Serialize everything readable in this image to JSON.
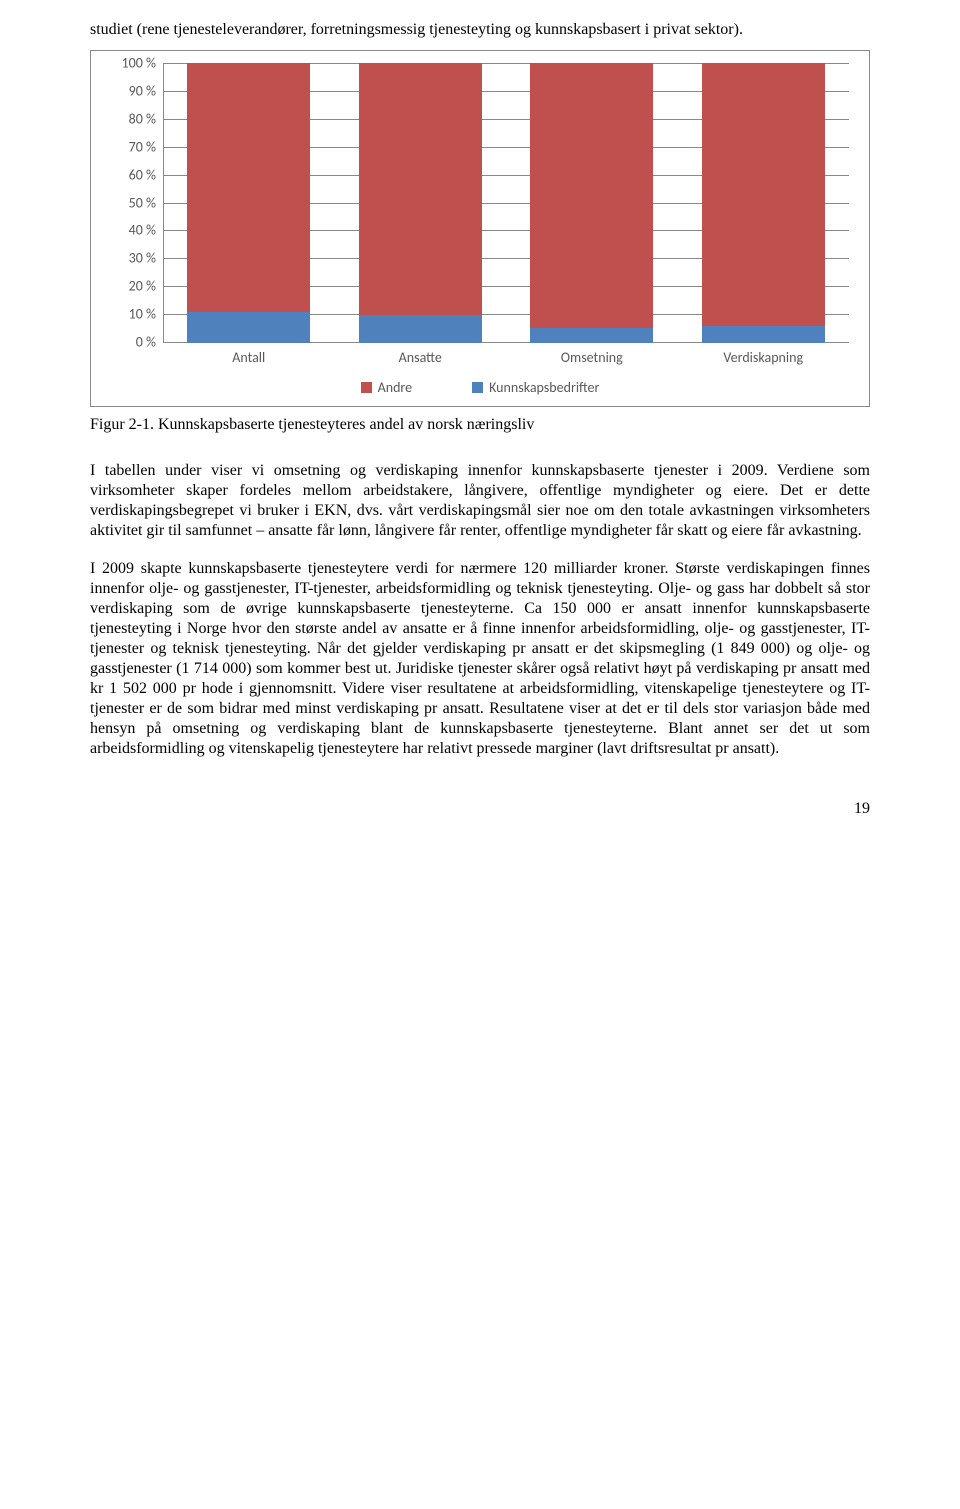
{
  "intro": "studiet (rene tjenesteleverandører, forretningsmessig tjenesteyting og kunnskapsbasert i privat sektor).",
  "chart": {
    "type": "stacked-bar-100",
    "yticks": [
      "100 %",
      "90 %",
      "80 %",
      "70 %",
      "60 %",
      "50 %",
      "40 %",
      "30 %",
      "20 %",
      "10 %",
      "0 %"
    ],
    "ylim": [
      0,
      100
    ],
    "gridline_color": "#888888",
    "background_color": "#ffffff",
    "label_color": "#595959",
    "label_fontsize": 14,
    "categories": [
      "Antall",
      "Ansatte",
      "Omsetning",
      "Verdiskapning"
    ],
    "series": [
      {
        "name": "Andre",
        "color": "#c0504d"
      },
      {
        "name": "Kunnskapsbedrifter",
        "color": "#4f81bd"
      }
    ],
    "values": {
      "andre": [
        89,
        90,
        94.5,
        94
      ],
      "kunnskap": [
        11,
        10,
        5.5,
        6
      ]
    },
    "bar_width_pct": 18
  },
  "figure_caption": "Figur 2-1. Kunnskapsbaserte tjenesteyteres andel av norsk næringsliv",
  "para1": "I tabellen under viser vi omsetning og verdiskaping innenfor kunnskapsbaserte tjenester i 2009. Verdiene som virksomheter skaper fordeles mellom arbeidstakere, långivere, offentlige myndigheter og eiere. Det er dette verdiskapingsbegrepet vi bruker i EKN, dvs. vårt verdiskapingsmål sier noe om den totale avkastningen virksomheters aktivitet gir til samfunnet – ansatte får lønn, långivere får renter, offentlige myndigheter får skatt og eiere får avkastning.",
  "para2": "I 2009 skapte kunnskapsbaserte tjenesteytere verdi for nærmere 120 milliarder kroner. Største verdiskapingen finnes innenfor olje- og gasstjenester, IT-tjenester, arbeidsformidling og teknisk tjenesteyting. Olje- og gass har dobbelt så stor verdiskaping som de øvrige kunnskapsbaserte tjenesteyterne. Ca 150 000 er ansatt innenfor kunnskapsbaserte tjenesteyting i Norge hvor den største andel av ansatte er å finne innenfor arbeidsformidling, olje- og gasstjenester, IT-tjenester og teknisk tjenesteyting. Når det gjelder verdiskaping pr ansatt er det skipsmegling (1 849 000) og olje- og gasstjenester (1 714 000) som kommer best ut. Juridiske tjenester skårer også relativt høyt på verdiskaping pr ansatt med kr 1 502 000 pr hode i gjennomsnitt. Videre viser resultatene at arbeidsformidling, vitenskapelige tjenesteytere og IT-tjenester er de som bidrar med minst verdiskaping pr ansatt. Resultatene viser at det er til dels stor variasjon både med hensyn på omsetning og verdiskaping blant de kunnskapsbaserte tjenesteyterne. Blant annet ser det ut som arbeidsformidling og vitenskapelig tjenesteytere har relativt pressede marginer (lavt driftsresultat pr ansatt).",
  "page_number": "19"
}
